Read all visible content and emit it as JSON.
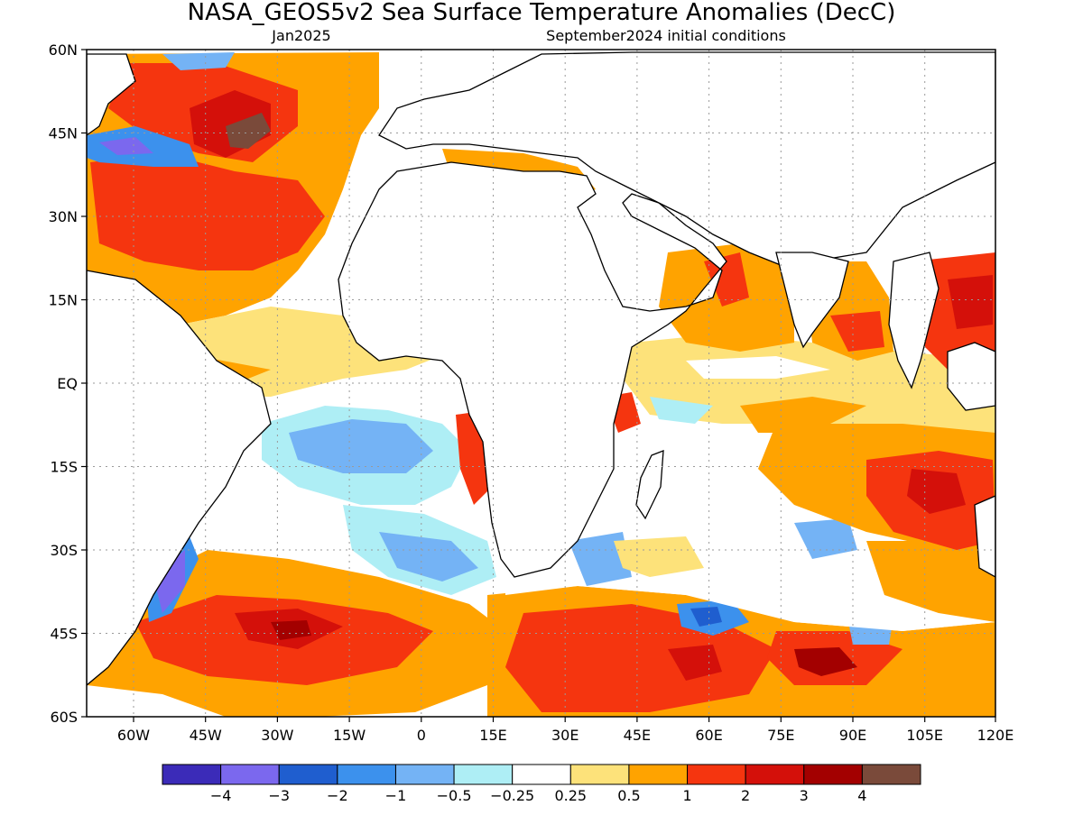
{
  "title": "NASA_GEOS5v2 Sea Surface Temperature Anomalies (DecC)",
  "subtitle_left": "Jan2025",
  "subtitle_right": "September2024 initial conditions",
  "lat_labels": [
    "60N",
    "45N",
    "30N",
    "15N",
    "EQ",
    "15S",
    "30S",
    "45S",
    "60S"
  ],
  "lon_labels": [
    "60W",
    "45W",
    "30W",
    "15W",
    "0",
    "15E",
    "30E",
    "45E",
    "60E",
    "75E",
    "90E",
    "105E",
    "120E"
  ],
  "colorbar": {
    "colors": [
      "#3b2bb8",
      "#7b68ee",
      "#1f5ecf",
      "#3c91ed",
      "#74b3f5",
      "#aeeef5",
      "#ffffff",
      "#fde27a",
      "#ffa300",
      "#f5350f",
      "#d4100a",
      "#a30000",
      "#7a4a3a"
    ],
    "labels": [
      "-4",
      "-3",
      "-2",
      "-1",
      "-0.5",
      "-0.25",
      "0.25",
      "0.5",
      "1",
      "2",
      "3",
      "4"
    ]
  },
  "colors": {
    "land": "#ffffff",
    "coast": "#000000",
    "grid": "#9a9a9a"
  }
}
